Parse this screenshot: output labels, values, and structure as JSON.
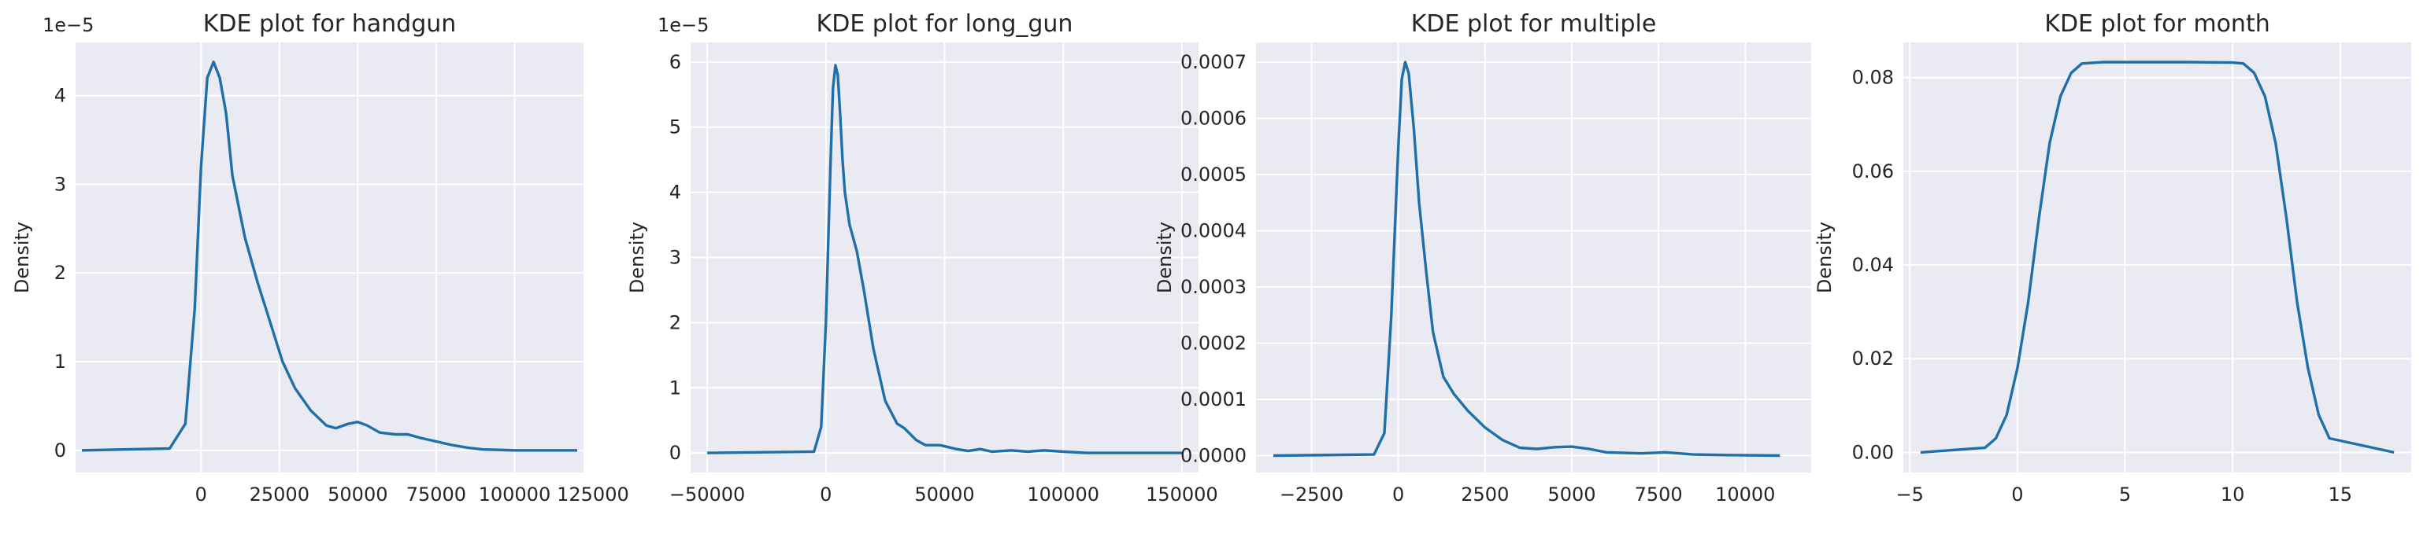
{
  "colors": {
    "background": "#EAEAF2",
    "grid": "#ffffff",
    "line": "#1f6fa8",
    "text": "#262626"
  },
  "chart_data": [
    {
      "type": "line",
      "title": "KDE plot for handgun",
      "ylabel": "Density",
      "y_offset_label": "1e−5",
      "grid": true,
      "xlim": [
        -40000,
        122000
      ],
      "ylim": [
        -0.25,
        4.6
      ],
      "xticks": [
        0,
        25000,
        50000,
        75000,
        100000,
        125000
      ],
      "xtick_labels": [
        "0",
        "25000",
        "50000",
        "75000",
        "100000",
        "125000"
      ],
      "yticks": [
        0,
        1,
        2,
        3,
        4
      ],
      "ytick_labels": [
        "0",
        "1",
        "2",
        "3",
        "4"
      ],
      "x": [
        -38000,
        -10000,
        -5000,
        -2000,
        0,
        2000,
        4000,
        6000,
        8000,
        10000,
        14000,
        18000,
        22000,
        26000,
        30000,
        35000,
        40000,
        43000,
        47000,
        50000,
        53000,
        57000,
        62000,
        66000,
        70000,
        75000,
        80000,
        85000,
        90000,
        95000,
        100000,
        120000
      ],
      "y": [
        0,
        0.02,
        0.3,
        1.6,
        3.2,
        4.2,
        4.38,
        4.2,
        3.8,
        3.1,
        2.4,
        1.9,
        1.45,
        1.0,
        0.7,
        0.45,
        0.28,
        0.25,
        0.3,
        0.32,
        0.28,
        0.2,
        0.18,
        0.18,
        0.14,
        0.1,
        0.06,
        0.03,
        0.01,
        0.005,
        0,
        0
      ]
    },
    {
      "type": "line",
      "title": "KDE plot for long_gun",
      "ylabel": "Density",
      "y_offset_label": "1e−5",
      "grid": true,
      "xlim": [
        -57000,
        157000
      ],
      "ylim": [
        -0.3,
        6.3
      ],
      "xticks": [
        -50000,
        0,
        50000,
        100000,
        150000
      ],
      "xtick_labels": [
        "−50000",
        "0",
        "50000",
        "100000",
        "150000"
      ],
      "yticks": [
        0,
        1,
        2,
        3,
        4,
        5,
        6
      ],
      "ytick_labels": [
        "0",
        "1",
        "2",
        "3",
        "4",
        "5",
        "6"
      ],
      "x": [
        -50000,
        -5000,
        -2000,
        0,
        2000,
        3000,
        4000,
        5000,
        6000,
        7000,
        8000,
        10000,
        13000,
        16000,
        20000,
        25000,
        30000,
        33000,
        38000,
        42000,
        48000,
        55000,
        60000,
        65000,
        70000,
        78000,
        85000,
        92000,
        100000,
        110000,
        150000
      ],
      "y": [
        0,
        0.02,
        0.4,
        2.0,
        4.5,
        5.6,
        5.95,
        5.8,
        5.2,
        4.5,
        4.0,
        3.5,
        3.1,
        2.5,
        1.6,
        0.8,
        0.45,
        0.38,
        0.2,
        0.12,
        0.12,
        0.06,
        0.03,
        0.06,
        0.02,
        0.04,
        0.02,
        0.04,
        0.02,
        0.0,
        0
      ]
    },
    {
      "type": "line",
      "title": "KDE plot for multiple",
      "ylabel": "Density",
      "grid": true,
      "xlim": [
        -4100,
        11900
      ],
      "ylim": [
        -3e-05,
        0.000735
      ],
      "xticks": [
        -2500,
        0,
        2500,
        5000,
        7500,
        10000
      ],
      "xtick_labels": [
        "−2500",
        "0",
        "2500",
        "5000",
        "7500",
        "10000"
      ],
      "yticks": [
        0,
        0.0001,
        0.0002,
        0.0003,
        0.0004,
        0.0005,
        0.0006,
        0.0007
      ],
      "ytick_labels": [
        "0.0000",
        "0.0001",
        "0.0002",
        "0.0003",
        "0.0004",
        "0.0005",
        "0.0006",
        "0.0007"
      ],
      "x": [
        -3600,
        -700,
        -400,
        -200,
        0,
        100,
        200,
        300,
        450,
        600,
        800,
        1000,
        1300,
        1600,
        2000,
        2500,
        3000,
        3500,
        4000,
        4500,
        5000,
        5500,
        6000,
        7000,
        7700,
        8500,
        9500,
        11000
      ],
      "y": [
        0,
        2e-06,
        4e-05,
        0.00025,
        0.00055,
        0.00067,
        0.0007,
        0.00068,
        0.00058,
        0.00045,
        0.00033,
        0.00022,
        0.00014,
        0.00011,
        8e-05,
        5e-05,
        2.8e-05,
        1.4e-05,
        1.2e-05,
        1.5e-05,
        1.6e-05,
        1.2e-05,
        6e-06,
        4e-06,
        6e-06,
        2e-06,
        1e-06,
        0
      ],
      "note": ""
    },
    {
      "type": "line",
      "title": "KDE plot for month",
      "ylabel": "Density",
      "grid": true,
      "xlim": [
        -5.3,
        18.3
      ],
      "ylim": [
        -0.0043,
        0.0875
      ],
      "xticks": [
        -5,
        0,
        5,
        10,
        15
      ],
      "xtick_labels": [
        "−5",
        "0",
        "5",
        "10",
        "15"
      ],
      "yticks": [
        0,
        0.02,
        0.04,
        0.06,
        0.08
      ],
      "ytick_labels": [
        "0.00",
        "0.02",
        "0.04",
        "0.06",
        "0.08"
      ],
      "x": [
        -4.5,
        -1.5,
        -1,
        -0.5,
        0,
        0.5,
        1,
        1.5,
        2,
        2.5,
        3,
        4,
        6,
        8,
        10,
        10.5,
        11,
        11.5,
        12,
        12.5,
        13,
        13.5,
        14,
        14.5,
        17.5
      ],
      "y": [
        0,
        0.001,
        0.003,
        0.008,
        0.018,
        0.032,
        0.05,
        0.066,
        0.076,
        0.081,
        0.083,
        0.0833,
        0.0833,
        0.0833,
        0.0832,
        0.083,
        0.081,
        0.076,
        0.066,
        0.05,
        0.032,
        0.018,
        0.008,
        0.003,
        0
      ]
    }
  ]
}
